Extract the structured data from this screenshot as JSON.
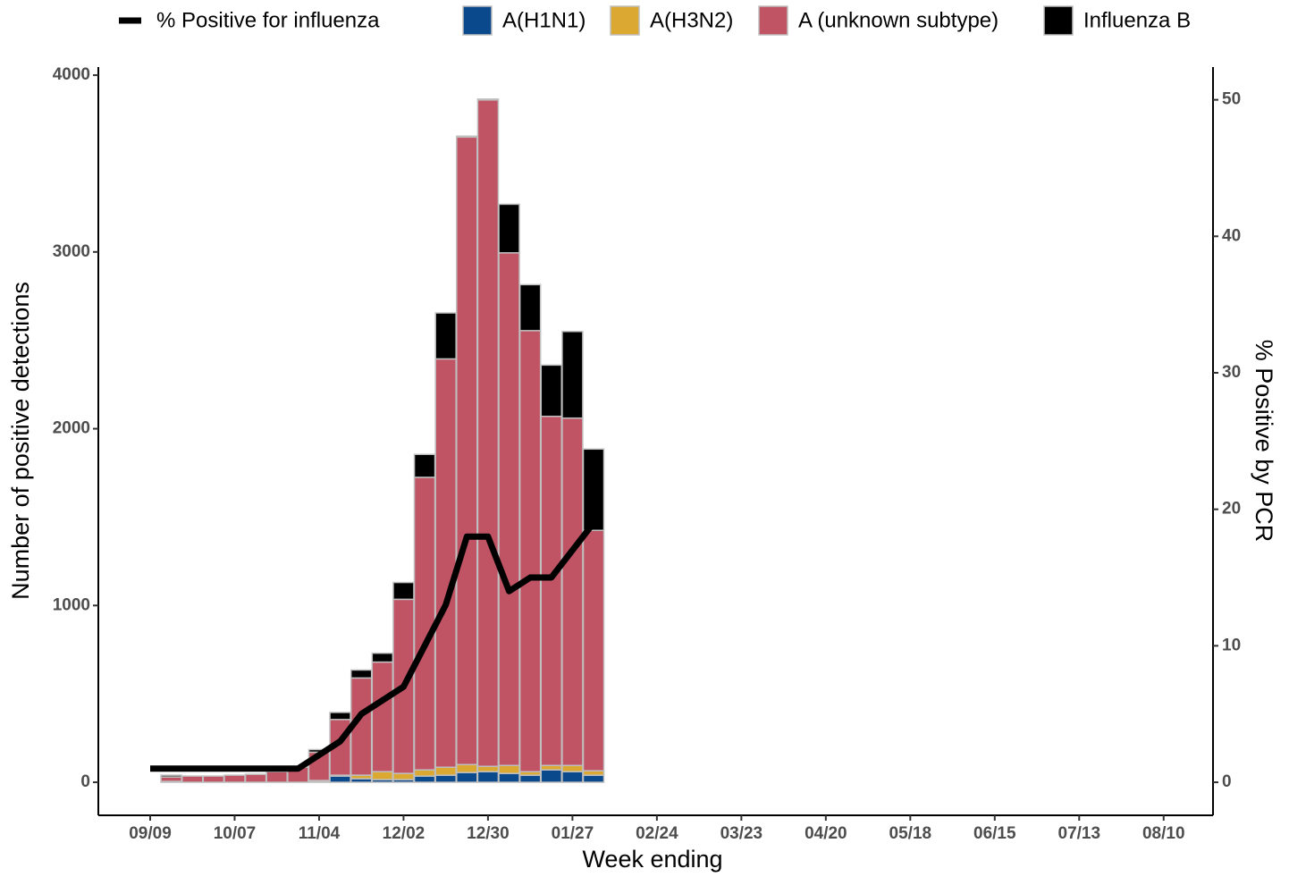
{
  "chart_data": {
    "type": "bar",
    "categories": [
      "09/09",
      null,
      null,
      null,
      "10/07",
      null,
      null,
      null,
      "11/04",
      null,
      null,
      null,
      "12/02",
      null,
      null,
      null,
      "12/30",
      null,
      null,
      null,
      "01/27",
      null,
      null,
      null,
      "02/24",
      null,
      null,
      null,
      "03/23",
      null,
      null,
      null,
      "04/20",
      null,
      null,
      null,
      "05/18",
      null,
      null,
      null,
      "06/15",
      null,
      null,
      null,
      "07/13",
      null,
      null,
      null,
      "08/10"
    ],
    "x_label": "Week ending",
    "y_label": "Number of positive detections",
    "y2_label": "% Positive by PCR",
    "ylim": [
      -187,
      4046
    ],
    "yticks": [
      0,
      1000,
      2000,
      3000,
      4000
    ],
    "y2lim": [
      -2.42,
      52.4
    ],
    "y2ticks": [
      0,
      10,
      20,
      30,
      40,
      50
    ],
    "series": [
      {
        "name": "% Positive for influenza",
        "type": "line",
        "axis": "y2",
        "color": "#000000",
        "values": [
          1,
          1,
          1,
          1,
          1,
          1,
          1,
          1,
          2,
          3,
          5,
          6,
          7,
          10,
          13,
          18,
          18,
          14,
          15,
          15,
          17,
          19,
          null,
          null,
          null,
          null,
          null,
          null,
          null,
          null,
          null,
          null,
          null,
          null,
          null,
          null,
          null,
          null,
          null,
          null,
          null,
          null,
          null,
          null,
          null,
          null,
          null,
          null,
          null
        ]
      },
      {
        "name": "A(H1N1)",
        "type": "bar",
        "color": "#0a4a8c",
        "values": [
          null,
          5,
          0,
          0,
          0,
          0,
          0,
          0,
          5,
          35,
          20,
          15,
          15,
          35,
          40,
          55,
          60,
          50,
          40,
          70,
          60,
          40,
          null,
          null,
          null,
          null,
          null,
          null,
          null,
          null,
          null,
          null,
          null,
          null,
          null,
          null,
          null,
          null,
          null,
          null,
          null,
          null,
          null,
          null,
          null,
          null,
          null,
          null,
          null
        ]
      },
      {
        "name": "A(H3N2)",
        "type": "bar",
        "color": "#dba832",
        "values": [
          null,
          0,
          0,
          0,
          0,
          0,
          0,
          0,
          5,
          5,
          20,
          45,
          35,
          35,
          45,
          45,
          30,
          45,
          20,
          25,
          35,
          25,
          null,
          null,
          null,
          null,
          null,
          null,
          null,
          null,
          null,
          null,
          null,
          null,
          null,
          null,
          null,
          null,
          null,
          null,
          null,
          null,
          null,
          null,
          null,
          null,
          null,
          null,
          null
        ]
      },
      {
        "name": "A (unknown subtype)",
        "type": "bar",
        "color": "#c05465",
        "values": [
          null,
          25,
          35,
          35,
          40,
          45,
          60,
          85,
          160,
          315,
          550,
          620,
          985,
          1655,
          2310,
          3550,
          3770,
          2900,
          2495,
          1975,
          1965,
          1360,
          null,
          null,
          null,
          null,
          null,
          null,
          null,
          null,
          null,
          null,
          null,
          null,
          null,
          null,
          null,
          null,
          null,
          null,
          null,
          null,
          null,
          null,
          null,
          null,
          null,
          null,
          null
        ]
      },
      {
        "name": "Influenza B",
        "type": "bar",
        "color": "#000000",
        "values": [
          null,
          10,
          0,
          0,
          0,
          0,
          0,
          0,
          15,
          40,
          45,
          50,
          95,
          130,
          260,
          5,
          5,
          275,
          260,
          290,
          490,
          460,
          null,
          null,
          null,
          null,
          null,
          null,
          null,
          null,
          null,
          null,
          null,
          null,
          null,
          null,
          null,
          null,
          null,
          null,
          null,
          null,
          null,
          null,
          null,
          null,
          null,
          null,
          null
        ]
      }
    ]
  }
}
